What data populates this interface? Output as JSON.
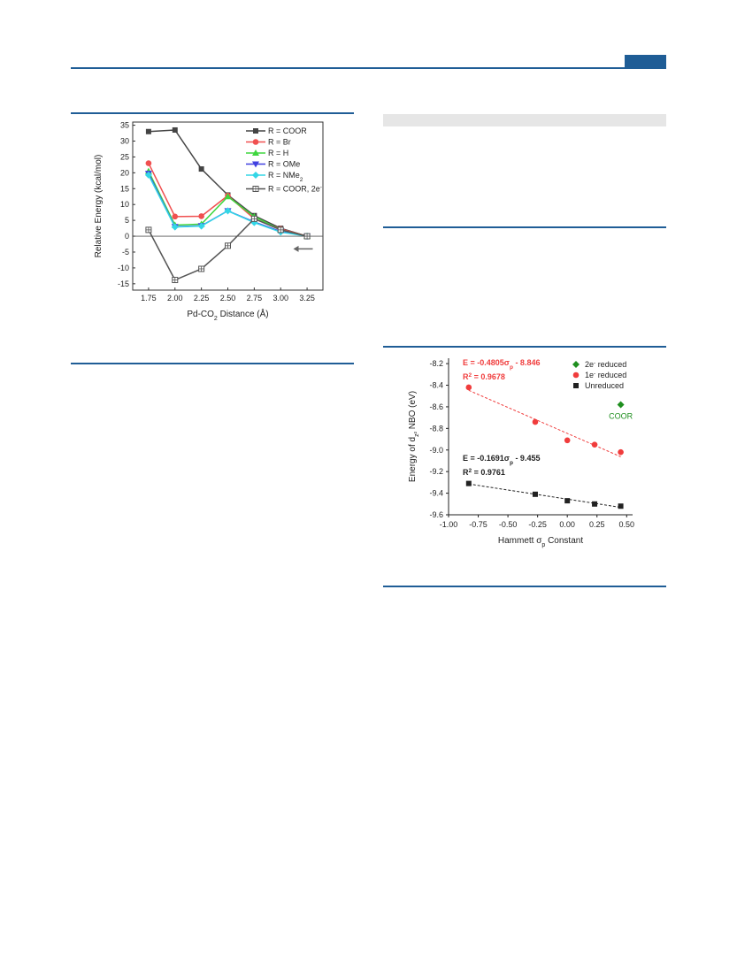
{
  "page": {
    "accent_color": "#1f5d96"
  },
  "chart_data": [
    {
      "type": "line",
      "xlabel": "Pd-CO<sub>2</sub> Distance (Å)",
      "xlabel_parts": [
        "Pd-CO",
        "2",
        " Distance (Å)"
      ],
      "ylabel": "Relative Energy (kcal/mol)",
      "xlim": [
        1.6,
        3.4
      ],
      "ylim": [
        -17,
        36
      ],
      "x_ticks": [
        "1.75",
        "2.00",
        "2.25",
        "2.50",
        "2.75",
        "3.00",
        "3.25"
      ],
      "y_ticks": [
        "35",
        "30",
        "25",
        "20",
        "15",
        "10",
        "5",
        "0",
        "-5",
        "-10",
        "-15"
      ],
      "legend_position": "top-right",
      "x": [
        1.75,
        2.0,
        2.25,
        2.5,
        2.75,
        3.0,
        3.25
      ],
      "series": [
        {
          "name": "R = COOR",
          "legend_parts": [
            "R = COOR"
          ],
          "color": "#444444",
          "marker": "square",
          "values": [
            33,
            33.5,
            21.2,
            13,
            6.5,
            2.5,
            0
          ]
        },
        {
          "name": "R = Br",
          "legend_parts": [
            "R = Br"
          ],
          "color": "#f05050",
          "marker": "circle",
          "values": [
            23,
            6.2,
            6.3,
            12.8,
            5.5,
            2.3,
            0
          ]
        },
        {
          "name": "R = H",
          "legend_parts": [
            "R = H"
          ],
          "color": "#3fd63f",
          "marker": "triangle-up",
          "values": [
            20.5,
            3.5,
            3.8,
            12.5,
            6.2,
            2.0,
            0
          ]
        },
        {
          "name": "R = OMe",
          "legend_parts": [
            "R = OMe"
          ],
          "color": "#4040e0",
          "marker": "triangle-down",
          "values": [
            19.8,
            3.0,
            3.3,
            8.0,
            4.5,
            1.5,
            0
          ]
        },
        {
          "name": "R = NMe2",
          "legend_parts": [
            "R = NMe",
            "2"
          ],
          "color": "#33d6e6",
          "marker": "diamond",
          "values": [
            19.3,
            2.9,
            3.2,
            8.0,
            4.3,
            1.3,
            0
          ]
        },
        {
          "name": "R = COOR, 2e-",
          "legend_parts": [
            "R = COOR, 2e",
            "-"
          ],
          "color": "#555555",
          "marker": "square-cross",
          "values": [
            2,
            -13.8,
            -10.3,
            -3.0,
            5.5,
            2.0,
            0
          ]
        }
      ],
      "annotations": [
        {
          "type": "arrow",
          "direction": "left",
          "x": 3.22,
          "y": -4
        }
      ]
    },
    {
      "type": "scatter",
      "xlabel": "Hammett σp Constant",
      "xlabel_parts": [
        "Hammett σ",
        "p",
        " Constant"
      ],
      "ylabel": "Energy of dz² NBO (eV)",
      "ylabel_parts": [
        "Energy of d",
        "z²",
        " NBO (eV)"
      ],
      "xlim": [
        -1.0,
        0.55
      ],
      "ylim": [
        -9.6,
        -8.15
      ],
      "x_ticks": [
        "-1.00",
        "-0.75",
        "-0.50",
        "-0.25",
        "0.00",
        "0.25",
        "0.50"
      ],
      "y_ticks": [
        "-8.2",
        "-8.4",
        "-8.6",
        "-8.8",
        "-9.0",
        "-9.2",
        "-9.4",
        "-9.6"
      ],
      "legend_position": "top-right",
      "series": [
        {
          "name": "2e- reduced",
          "legend_parts": [
            "2e",
            "-",
            " reduced"
          ],
          "color": "#1f8f1f",
          "marker": "diamond",
          "x": [
            0.45
          ],
          "y": [
            -8.58
          ],
          "label": "COOR"
        },
        {
          "name": "1e- reduced",
          "legend_parts": [
            "1e",
            "-",
            " reduced"
          ],
          "color": "#f03c3c",
          "marker": "circle",
          "x": [
            -0.83,
            -0.27,
            0.0,
            0.23,
            0.45
          ],
          "y": [
            -8.42,
            -8.74,
            -8.91,
            -8.95,
            -9.02
          ],
          "fit": {
            "slope": -0.4805,
            "intercept": -8.846,
            "equation_parts": [
              "E = -0.4805σ",
              "p",
              " - 8.846"
            ],
            "r2_parts": [
              "R",
              "2",
              " = 0.9678"
            ]
          }
        },
        {
          "name": "Unreduced",
          "legend_parts": [
            "Unreduced"
          ],
          "color": "#222222",
          "marker": "square",
          "x": [
            -0.83,
            -0.27,
            0.0,
            0.23,
            0.45
          ],
          "y": [
            -9.31,
            -9.41,
            -9.47,
            -9.5,
            -9.52
          ],
          "fit": {
            "slope": -0.1691,
            "intercept": -9.455,
            "equation_parts": [
              "E = -0.1691σ",
              "p",
              " - 9.455"
            ],
            "r2_parts": [
              "R",
              "2",
              " = 0.9761"
            ]
          }
        }
      ]
    }
  ]
}
